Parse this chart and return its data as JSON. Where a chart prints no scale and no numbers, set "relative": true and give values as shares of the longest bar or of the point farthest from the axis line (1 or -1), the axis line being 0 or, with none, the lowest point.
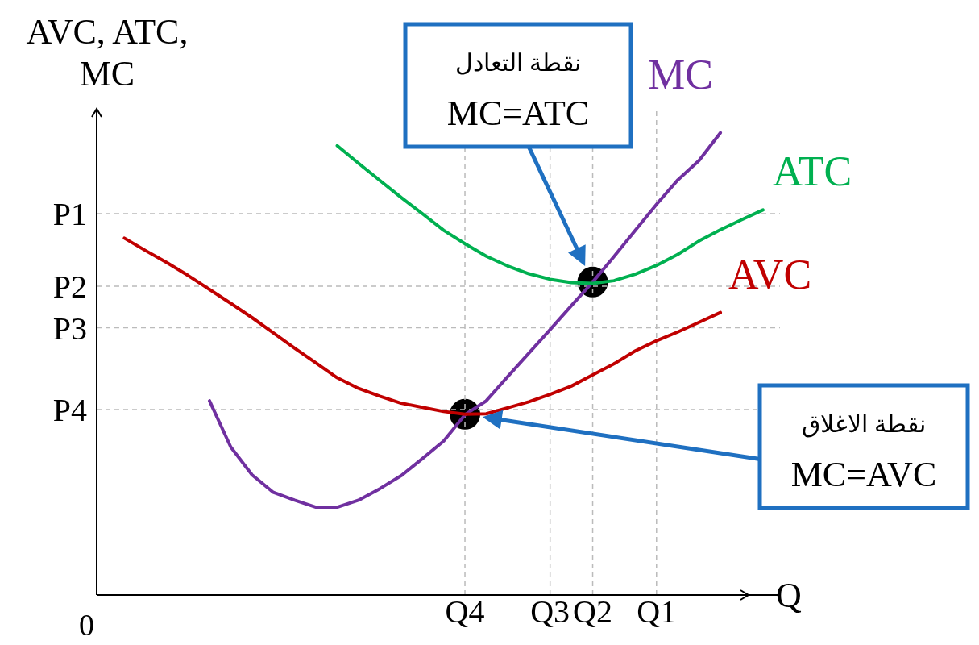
{
  "chart_data": {
    "type": "line",
    "relative": true,
    "xlabel": "Q",
    "ylabel": "AVC, ATC, MC",
    "grid": false,
    "legend": false,
    "marker": "none",
    "categories": [
      null,
      null,
      null,
      null,
      null,
      null,
      null,
      null,
      null,
      null,
      null,
      null,
      null,
      null,
      null,
      null,
      null,
      "Q4",
      null,
      null,
      null,
      "Q3",
      null,
      "Q2",
      null,
      null,
      "Q1",
      null,
      null,
      null,
      null,
      null
    ],
    "series": [
      {
        "name": "MC",
        "color": "#7030a0",
        "values": [
          null,
          null,
          null,
          null,
          null,
          0.42,
          0.32,
          0.26,
          0.222,
          0.205,
          0.19,
          0.19,
          0.205,
          0.23,
          0.258,
          0.295,
          0.333,
          0.39,
          0.42,
          0.472,
          0.523,
          0.574,
          0.626,
          0.677,
          0.732,
          0.789,
          0.845,
          0.898,
          0.94,
          1,
          null,
          null
        ]
      },
      {
        "name": "ATC",
        "color": "#00b050",
        "values": [
          null,
          null,
          null,
          null,
          null,
          null,
          null,
          null,
          null,
          null,
          null,
          0.972,
          0.934,
          0.897,
          0.86,
          0.825,
          0.789,
          0.76,
          0.733,
          0.712,
          0.695,
          0.683,
          0.676,
          0.674,
          0.68,
          0.694,
          0.713,
          0.737,
          0.766,
          0.79,
          0.812,
          0.833
        ]
      },
      {
        "name": "AVC",
        "color": "#c00000",
        "values": [
          null,
          0.772,
          0.745,
          0.719,
          0.691,
          0.661,
          0.631,
          0.6,
          0.567,
          0.534,
          0.502,
          0.47,
          0.447,
          0.43,
          0.415,
          0.406,
          0.397,
          0.391,
          0.392,
          0.405,
          0.418,
          0.434,
          0.452,
          0.476,
          0.5,
          0.528,
          0.55,
          0.569,
          0.59,
          0.611,
          null,
          null
        ]
      },
      {
        "type": "scatter",
        "marker": "circle",
        "color": "#000000",
        "values": [
          null,
          null,
          null,
          null,
          null,
          null,
          null,
          null,
          null,
          null,
          null,
          null,
          null,
          null,
          null,
          null,
          null,
          0.391,
          null,
          null,
          null,
          null,
          null,
          0.677,
          null,
          null,
          null,
          null,
          null,
          null,
          null,
          null
        ]
      }
    ],
    "ref_lines": [
      {
        "axis": "y",
        "value": 0.825,
        "label": "P1",
        "color": "#bbbbbb",
        "line_style": "dashed"
      },
      {
        "axis": "y",
        "value": 0.668,
        "label": "P2",
        "color": "#bbbbbb",
        "line_style": "dashed"
      },
      {
        "axis": "y",
        "value": 0.578,
        "label": "P3",
        "color": "#bbbbbb",
        "line_style": "dashed"
      },
      {
        "axis": "y",
        "value": 0.401,
        "label": "P4",
        "color": "#bbbbbb",
        "line_style": "dashed"
      },
      {
        "axis": "x",
        "value": "Q4",
        "color": "#bbbbbb",
        "line_style": "dashed"
      },
      {
        "axis": "x",
        "value": "Q3",
        "color": "#bbbbbb",
        "line_style": "dashed"
      },
      {
        "axis": "x",
        "value": "Q2",
        "color": "#bbbbbb",
        "line_style": "dashed"
      },
      {
        "axis": "x",
        "value": "Q1",
        "color": "#bbbbbb",
        "line_style": "dashed"
      }
    ],
    "annotations": [
      "نقطة التعادل\nMC=ATC",
      "نقطة الاغلاق\nMC=AVC",
      "0"
    ]
  }
}
